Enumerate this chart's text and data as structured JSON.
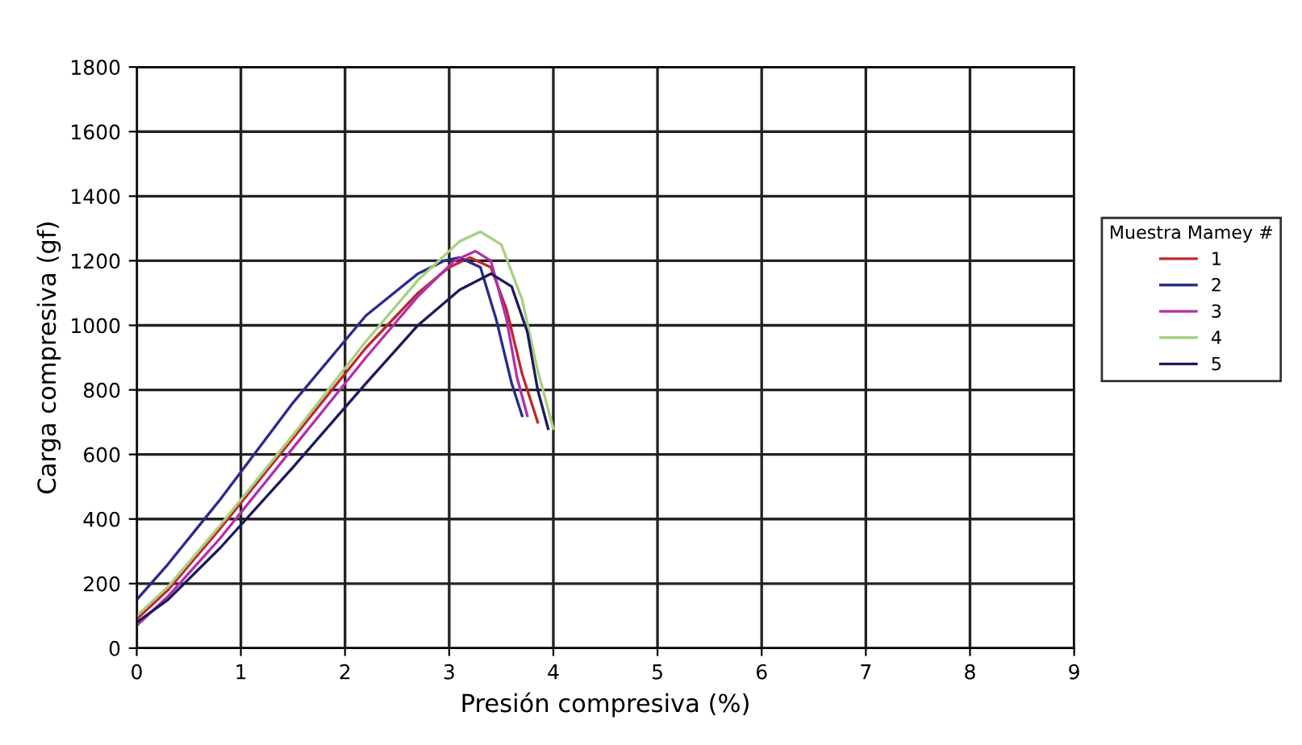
{
  "chart_data": {
    "type": "line",
    "xlabel": "Presión compresiva (%)",
    "ylabel": "Carga compresiva (gf)",
    "legend_title": "Muestra Mamey #",
    "legend": "right",
    "grid": true,
    "xlim": [
      0,
      9
    ],
    "xticks": [
      0,
      1,
      2,
      3,
      4,
      5,
      6,
      7,
      8,
      9
    ],
    "ylim": [
      0,
      1800
    ],
    "yticks": [
      0,
      200,
      400,
      600,
      800,
      1000,
      1200,
      1400,
      1600,
      1800
    ],
    "series": [
      {
        "name": "1",
        "color": "#c0262e",
        "x": [
          0,
          0.3,
          0.8,
          1.5,
          2.2,
          2.7,
          3.0,
          3.2,
          3.4,
          3.55,
          3.7,
          3.85
        ],
        "values": [
          90,
          180,
          370,
          650,
          930,
          1100,
          1180,
          1210,
          1180,
          1050,
          850,
          700
        ]
      },
      {
        "name": "2",
        "color": "#2b2b8c",
        "x": [
          0,
          0.3,
          0.8,
          1.5,
          2.2,
          2.7,
          2.95,
          3.1,
          3.3,
          3.45,
          3.6,
          3.7
        ],
        "values": [
          150,
          260,
          460,
          760,
          1030,
          1160,
          1200,
          1210,
          1180,
          1020,
          820,
          720
        ]
      },
      {
        "name": "3",
        "color": "#b030b0",
        "x": [
          0,
          0.3,
          0.8,
          1.5,
          2.2,
          2.7,
          3.05,
          3.25,
          3.4,
          3.55,
          3.65,
          3.75
        ],
        "values": [
          70,
          160,
          340,
          620,
          900,
          1090,
          1200,
          1230,
          1200,
          1020,
          840,
          720
        ]
      },
      {
        "name": "4",
        "color": "#a8d080",
        "x": [
          0,
          0.3,
          0.8,
          1.5,
          2.2,
          2.7,
          3.1,
          3.3,
          3.5,
          3.7,
          3.85,
          4.0
        ],
        "values": [
          100,
          190,
          380,
          660,
          950,
          1140,
          1260,
          1290,
          1250,
          1080,
          860,
          680
        ]
      },
      {
        "name": "5",
        "color": "#1a1a60",
        "x": [
          0,
          0.3,
          0.8,
          1.5,
          2.2,
          2.7,
          3.1,
          3.4,
          3.6,
          3.75,
          3.85,
          3.95
        ],
        "values": [
          80,
          150,
          310,
          560,
          820,
          1000,
          1110,
          1160,
          1120,
          980,
          800,
          680
        ]
      }
    ]
  }
}
